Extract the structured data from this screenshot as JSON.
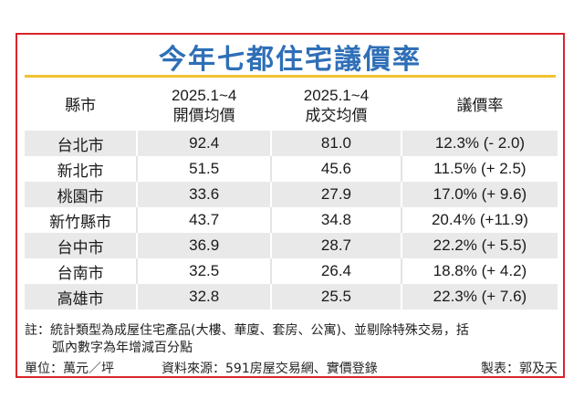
{
  "title": "今年七都住宅議價率",
  "table": {
    "headers": [
      {
        "line1": "縣市",
        "line2": ""
      },
      {
        "line1": "2025.1~4",
        "line2": "開價均價"
      },
      {
        "line1": "2025.1~4",
        "line2": "成交均價"
      },
      {
        "line1": "議價率",
        "line2": ""
      }
    ],
    "rows": [
      {
        "city": "台北市",
        "ask": "92.4",
        "deal": "81.0",
        "rate": "12.3% (- 2.0)"
      },
      {
        "city": "新北市",
        "ask": "51.5",
        "deal": "45.6",
        "rate": "11.5% (+ 2.5)"
      },
      {
        "city": "桃園市",
        "ask": "33.6",
        "deal": "27.9",
        "rate": "17.0% (+ 9.6)"
      },
      {
        "city": "新竹縣市",
        "ask": "43.7",
        "deal": "34.8",
        "rate": "20.4% (+11.9)"
      },
      {
        "city": "台中市",
        "ask": "36.9",
        "deal": "28.7",
        "rate": "22.2% (+ 5.5)"
      },
      {
        "city": "台南市",
        "ask": "32.5",
        "deal": "26.4",
        "rate": "18.8% (+ 4.2)"
      },
      {
        "city": "高雄市",
        "ask": "32.8",
        "deal": "25.5",
        "rate": "22.3% (+ 7.6)"
      }
    ]
  },
  "note": {
    "line1": "註：統計類型為成屋住宅產品(大樓、華廈、套房、公寓)、並剔除特殊交易，括",
    "line2": "弧內數字為年增減百分點"
  },
  "footer": {
    "unit": "單位：萬元／坪",
    "source": "資料來源：591房屋交易網、實價登錄",
    "maker": "製表：郭及天"
  },
  "colors": {
    "border": "#d9242a",
    "title": "#2f6fb7",
    "title_rule": "#f1c232",
    "stripe": "#e9e9e9"
  }
}
